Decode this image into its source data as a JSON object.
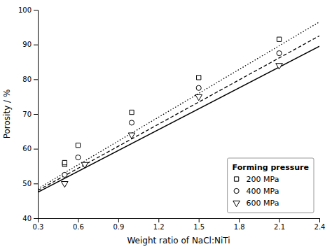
{
  "chart_data": {
    "type": "scatter",
    "xlabel": "Weight ratio of NaCl:NiTi",
    "ylabel": "Porosity / %",
    "xlim": [
      0.3,
      2.4
    ],
    "ylim": [
      40,
      100
    ],
    "xticks": [
      0.3,
      0.6,
      0.9,
      1.2,
      1.5,
      1.8,
      2.1,
      2.4
    ],
    "yticks": [
      40,
      50,
      60,
      70,
      80,
      90,
      100
    ],
    "legend": "lower right",
    "legend_title": "Forming pressure",
    "series": [
      {
        "type": "line",
        "line_style": "dotted",
        "color": "black",
        "x": [
          0.3,
          2.4
        ],
        "values": [
          48.5,
          96.5
        ]
      },
      {
        "type": "line",
        "line_style": "dashed",
        "color": "black",
        "x": [
          0.3,
          2.4
        ],
        "values": [
          48.0,
          92.5
        ]
      },
      {
        "type": "line",
        "line_style": "solid",
        "color": "black",
        "x": [
          0.3,
          2.4
        ],
        "values": [
          47.5,
          89.5
        ]
      },
      {
        "name": "200 MPa",
        "type": "scatter",
        "marker": "square",
        "color": "black",
        "x": [
          0.5,
          0.5,
          0.6,
          1.0,
          1.5,
          2.1
        ],
        "values": [
          55.5,
          56.0,
          61.0,
          70.5,
          80.5,
          91.5
        ]
      },
      {
        "name": "400 MPa",
        "type": "scatter",
        "marker": "circle",
        "color": "black",
        "x": [
          0.5,
          0.6,
          1.0,
          1.5,
          2.1
        ],
        "values": [
          52.5,
          57.5,
          67.5,
          77.5,
          87.5
        ]
      },
      {
        "name": "600 MPa",
        "type": "scatter",
        "marker": "triangle-down",
        "color": "black",
        "x": [
          0.5,
          0.65,
          1.0,
          1.5,
          2.1
        ],
        "values": [
          50.0,
          55.5,
          64.0,
          75.0,
          84.0
        ]
      }
    ]
  }
}
